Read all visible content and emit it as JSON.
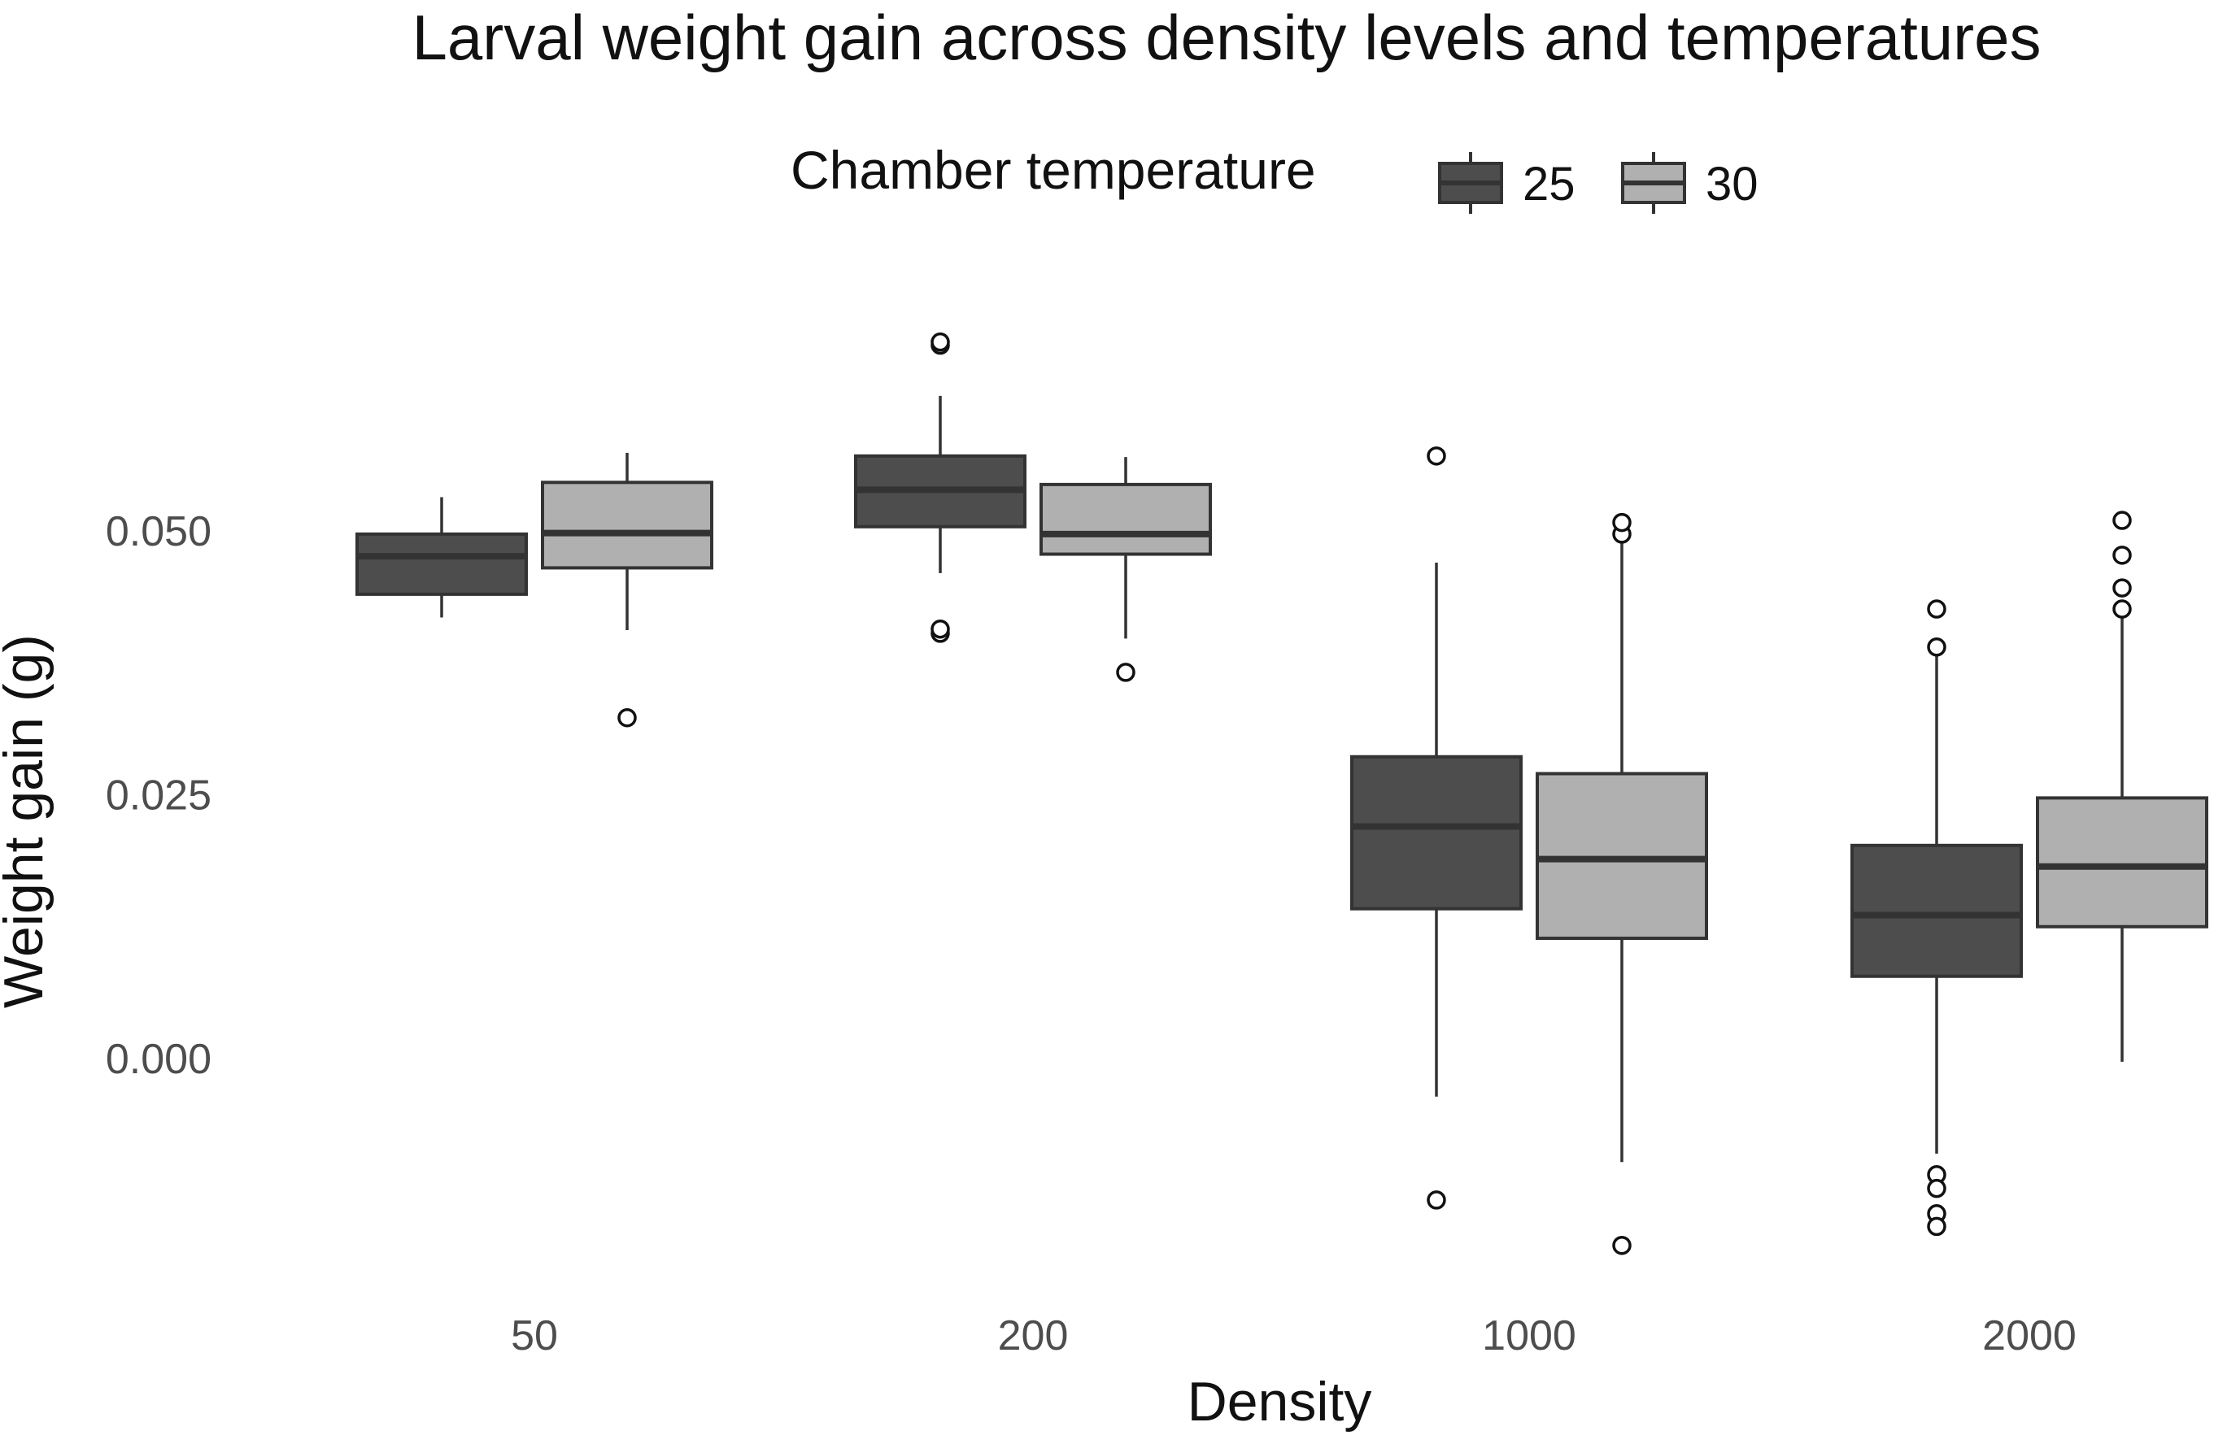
{
  "chart_data": {
    "type": "boxplot",
    "title": "Larval weight gain across density levels and temperatures",
    "xlabel": "Density",
    "ylabel": "Weight gain (g)",
    "ylim": [
      -0.0205,
      0.071
    ],
    "yticks": [
      0.0,
      0.025,
      0.05
    ],
    "ytick_labels": [
      "0.000",
      "0.025",
      "0.050"
    ],
    "categories": [
      "50",
      "200",
      "1000",
      "2000"
    ],
    "legend": {
      "title": "Chamber temperature",
      "position": "top",
      "entries": [
        {
          "label": "25",
          "color": "#4d4d4d"
        },
        {
          "label": "30",
          "color": "#b0b0b0"
        }
      ]
    },
    "series": [
      {
        "name": "25",
        "color": "#4d4d4d",
        "boxes": [
          {
            "category": "50",
            "whisker_low": 0.0418,
            "q1": 0.044,
            "median": 0.0476,
            "q3": 0.0497,
            "whisker_high": 0.0532,
            "outliers": []
          },
          {
            "category": "200",
            "whisker_low": 0.046,
            "q1": 0.0504,
            "median": 0.0539,
            "q3": 0.0571,
            "whisker_high": 0.0628,
            "outliers": [
              0.0676,
              0.0679,
              0.0403,
              0.0407
            ]
          },
          {
            "category": "1000",
            "whisker_low": -0.0036,
            "q1": 0.0142,
            "median": 0.022,
            "q3": 0.0286,
            "whisker_high": 0.047,
            "outliers": [
              0.0571,
              -0.0134
            ]
          },
          {
            "category": "2000",
            "whisker_low": -0.009,
            "q1": 0.0078,
            "median": 0.0136,
            "q3": 0.0202,
            "whisker_high": 0.039,
            "outliers": [
              0.0426,
              0.039,
              -0.011,
              -0.0123,
              -0.0147,
              -0.0159
            ]
          }
        ]
      },
      {
        "name": "30",
        "color": "#b0b0b0",
        "boxes": [
          {
            "category": "50",
            "whisker_low": 0.0406,
            "q1": 0.0465,
            "median": 0.0498,
            "q3": 0.0546,
            "whisker_high": 0.0574,
            "outliers": [
              0.0323
            ]
          },
          {
            "category": "200",
            "whisker_low": 0.0398,
            "q1": 0.0478,
            "median": 0.0497,
            "q3": 0.0544,
            "whisker_high": 0.057,
            "outliers": [
              0.0366
            ]
          },
          {
            "category": "1000",
            "whisker_low": -0.0098,
            "q1": 0.0114,
            "median": 0.0189,
            "q3": 0.027,
            "whisker_high": 0.0497,
            "outliers": [
              0.0497,
              0.0508,
              -0.0177
            ]
          },
          {
            "category": "2000",
            "whisker_low": -0.0003,
            "q1": 0.0125,
            "median": 0.0182,
            "q3": 0.0247,
            "whisker_high": 0.0425,
            "outliers": [
              0.051,
              0.0477,
              0.0446,
              0.0426
            ]
          }
        ]
      }
    ]
  }
}
